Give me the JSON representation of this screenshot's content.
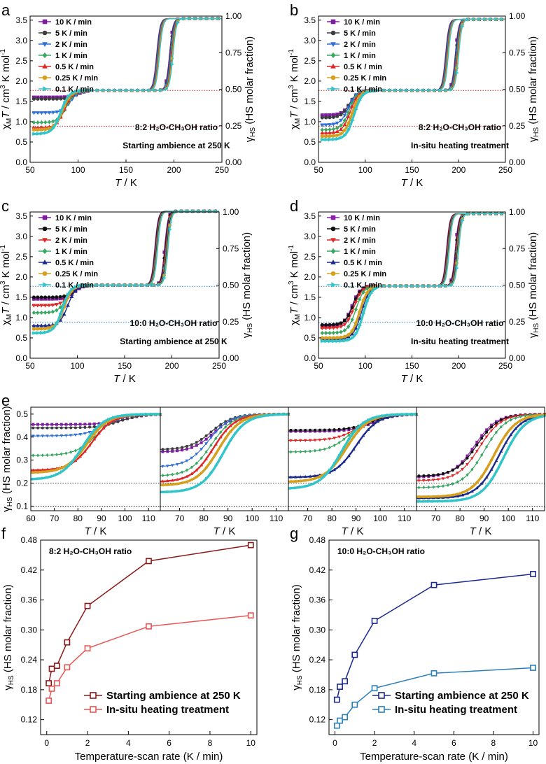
{
  "chart_data": [
    {
      "panel": "a",
      "type": "line",
      "xlabel": "T / K",
      "ylabel": "χMT / cm3 K mol-1",
      "y2label": "γHS (HS molar fraction)",
      "xlim": [
        50,
        250
      ],
      "ylim": [
        0,
        3.6
      ],
      "y2lim": [
        0,
        1.0
      ],
      "xticks": [
        "50",
        "100",
        "150",
        "200",
        "250"
      ],
      "yticks": [
        "0.0",
        "0.5",
        "1.0",
        "1.5",
        "2.0",
        "2.5",
        "3.0",
        "3.5"
      ],
      "y2ticks": [
        "0.00",
        "0.25",
        "0.50",
        "0.75",
        "1.00"
      ],
      "annotations": [
        "8:2 H₂O-CH₃OH ratio",
        "Starting ambience at 250 K"
      ],
      "guide_color": "#d62a2a",
      "guide_values": [
        0.89,
        1.77
      ],
      "plateau": 1.77,
      "high": 3.54,
      "t_up": 199,
      "t_down": 182,
      "series": [
        {
          "name": "10 K / min",
          "color": "#7b1d9e",
          "marker": "square",
          "start": 1.6,
          "T50": 100
        },
        {
          "name": "5 K / min",
          "color": "#3d3d3d",
          "marker": "circle",
          "start": 1.56,
          "T50": 98
        },
        {
          "name": "2 K / min",
          "color": "#2f6fd6",
          "marker": "tri-down",
          "start": 1.22,
          "T50": 92
        },
        {
          "name": "1 K / min",
          "color": "#38a862",
          "marker": "diamond",
          "start": 0.98,
          "T50": 88
        },
        {
          "name": "0.5 K / min",
          "color": "#e02727",
          "marker": "tri-up",
          "start": 0.85,
          "T50": 86
        },
        {
          "name": "0.25 K / min",
          "color": "#d6a01e",
          "marker": "circle",
          "start": 0.8,
          "T50": 84
        },
        {
          "name": "0.1 K / min",
          "color": "#31c4c8",
          "marker": "tri-right",
          "start": 0.7,
          "T50": 82
        }
      ]
    },
    {
      "panel": "b",
      "type": "line",
      "xlabel": "T / K",
      "ylabel": "χMT / cm3 K mol-1",
      "y2label": "γHS (HS molar fraction)",
      "xlim": [
        50,
        250
      ],
      "ylim": [
        0,
        3.6
      ],
      "y2lim": [
        0,
        1.0
      ],
      "xticks": [
        "50",
        "100",
        "150",
        "200",
        "250"
      ],
      "yticks": [
        "0.0",
        "0.5",
        "1.0",
        "1.5",
        "2.0",
        "2.5",
        "3.0",
        "3.5"
      ],
      "y2ticks": [
        "0.00",
        "0.25",
        "0.50",
        "0.75",
        "1.00"
      ],
      "annotations": [
        "8:2 H₂O-CH₃OH ratio",
        "In-situ heating treatment"
      ],
      "guide_color": "#d62a2a",
      "guide_values": [
        0.89,
        1.77
      ],
      "plateau": 1.77,
      "high": 3.52,
      "t_up": 200,
      "t_down": 186,
      "series": [
        {
          "name": "10 K / min",
          "color": "#7b1d9e",
          "marker": "square",
          "start": 1.16,
          "T50": 84
        },
        {
          "name": "5 K / min",
          "color": "#3d3d3d",
          "marker": "circle",
          "start": 1.1,
          "T50": 83
        },
        {
          "name": "2 K / min",
          "color": "#2f6fd6",
          "marker": "tri-down",
          "start": 0.92,
          "T50": 82
        },
        {
          "name": "1 K / min",
          "color": "#38a862",
          "marker": "diamond",
          "start": 0.8,
          "T50": 83
        },
        {
          "name": "0.5 K / min",
          "color": "#e02727",
          "marker": "tri-up",
          "start": 0.72,
          "T50": 84
        },
        {
          "name": "0.25 K / min",
          "color": "#d6a01e",
          "marker": "circle",
          "start": 0.64,
          "T50": 86
        },
        {
          "name": "0.1 K / min",
          "color": "#31c4c8",
          "marker": "tri-right",
          "start": 0.56,
          "T50": 88
        }
      ]
    },
    {
      "panel": "c",
      "type": "line",
      "xlabel": "T / K",
      "ylabel": "χMT / cm3 K mol-1",
      "y2label": "γHS (HS molar fraction)",
      "xlim": [
        50,
        250
      ],
      "ylim": [
        0,
        3.6
      ],
      "y2lim": [
        0,
        1.0
      ],
      "xticks": [
        "50",
        "100",
        "150",
        "200",
        "250"
      ],
      "yticks": [
        "0.0",
        "0.5",
        "1.0",
        "1.5",
        "2.0",
        "2.5",
        "3.0",
        "3.5"
      ],
      "y2ticks": [
        "0.00",
        "0.25",
        "0.50",
        "0.75",
        "1.00"
      ],
      "annotations": [
        "10:0 H₂O-CH₃OH ratio",
        "Starting ambience at 250 K"
      ],
      "guide_color": "#2a8fd6",
      "guide_values": [
        0.89,
        1.77
      ],
      "plateau": 1.8,
      "high": 3.62,
      "t_up": 196,
      "t_down": 182,
      "series": [
        {
          "name": "10 K / min",
          "color": "#7b1d9e",
          "marker": "square",
          "start": 1.46,
          "T50": 97
        },
        {
          "name": "5 K / min",
          "color": "#111111",
          "marker": "circle",
          "start": 1.5,
          "T50": 96
        },
        {
          "name": "2 K / min",
          "color": "#e02727",
          "marker": "tri-down",
          "start": 1.3,
          "T50": 91
        },
        {
          "name": "1 K / min",
          "color": "#38a862",
          "marker": "diamond",
          "start": 1.12,
          "T50": 88
        },
        {
          "name": "0.5 K / min",
          "color": "#1a2a8c",
          "marker": "tri-up",
          "start": 0.8,
          "T50": 90
        },
        {
          "name": "0.25 K / min",
          "color": "#d6a01e",
          "marker": "circle",
          "start": 0.72,
          "T50": 86
        },
        {
          "name": "0.1 K / min",
          "color": "#31c4c8",
          "marker": "tri-right",
          "start": 0.62,
          "T50": 84
        }
      ]
    },
    {
      "panel": "d",
      "type": "line",
      "xlabel": "T / K",
      "ylabel": "χMT / cm3 K mol-1",
      "y2label": "γHS (HS molar fraction)",
      "xlim": [
        50,
        250
      ],
      "ylim": [
        0,
        3.6
      ],
      "y2lim": [
        0,
        1.0
      ],
      "xticks": [
        "50",
        "100",
        "150",
        "200",
        "250"
      ],
      "yticks": [
        "0.0",
        "0.5",
        "1.0",
        "1.5",
        "2.0",
        "2.5",
        "3.0",
        "3.5"
      ],
      "y2ticks": [
        "0.00",
        "0.25",
        "0.50",
        "0.75",
        "1.00"
      ],
      "annotations": [
        "10:0 H₂O-CH₃OH ratio",
        "In-situ heating treatment"
      ],
      "guide_color": "#2a8fd6",
      "guide_values": [
        0.89,
        1.77
      ],
      "plateau": 1.78,
      "high": 3.56,
      "t_up": 200,
      "t_down": 187,
      "series": [
        {
          "name": "10 K / min",
          "color": "#8a1fa8",
          "marker": "square",
          "start": 0.8,
          "T50": 86
        },
        {
          "name": "5 K / min",
          "color": "#111111",
          "marker": "circle",
          "start": 0.82,
          "T50": 87
        },
        {
          "name": "2 K / min",
          "color": "#e02727",
          "marker": "tri-down",
          "start": 0.74,
          "T50": 88
        },
        {
          "name": "1 K / min",
          "color": "#38a862",
          "marker": "diamond",
          "start": 0.62,
          "T50": 90
        },
        {
          "name": "0.5 K / min",
          "color": "#1a2a8c",
          "marker": "tri-up",
          "start": 0.48,
          "T50": 96
        },
        {
          "name": "0.25 K / min",
          "color": "#d6a01e",
          "marker": "circle",
          "start": 0.5,
          "T50": 94
        },
        {
          "name": "0.1 K / min",
          "color": "#31c4c8",
          "marker": "tri-right",
          "start": 0.42,
          "T50": 98
        }
      ]
    },
    {
      "panel": "e",
      "type": "line",
      "xlabel": "T / K",
      "ylabel": "γHS (HS molar fraction)",
      "ylim": [
        0.08,
        0.53
      ],
      "yticks": [
        "0.1",
        "0.2",
        "0.3",
        "0.4",
        "0.5"
      ],
      "guide_values": [
        0.1,
        0.2
      ],
      "subpanels": [
        {
          "xlim": [
            60,
            115
          ],
          "xticks": [
            "60",
            "70",
            "80",
            "90",
            "100",
            "110"
          ],
          "source": "a"
        },
        {
          "xlim": [
            62,
            115
          ],
          "xticks": [
            "70",
            "80",
            "90",
            "100",
            "110"
          ],
          "source": "b"
        },
        {
          "xlim": [
            62,
            115
          ],
          "xticks": [
            "70",
            "80",
            "90",
            "100",
            "110"
          ],
          "source": "c"
        },
        {
          "xlim": [
            62,
            115
          ],
          "xticks": [
            "70",
            "80",
            "90",
            "100",
            "110"
          ],
          "source": "d"
        }
      ],
      "low_values": {
        "a": [
          0.455,
          0.44,
          0.405,
          0.32,
          0.255,
          0.245,
          0.215
        ],
        "b": [
          0.335,
          0.345,
          0.27,
          0.23,
          0.205,
          0.19,
          0.16
        ],
        "c": [
          0.425,
          0.43,
          0.385,
          0.335,
          0.225,
          0.205,
          0.175
        ],
        "d": [
          0.225,
          0.23,
          0.21,
          0.18,
          0.135,
          0.14,
          0.12
        ]
      },
      "T50": {
        "a": [
          100,
          98,
          92,
          88,
          86,
          84,
          82
        ],
        "b": [
          84,
          83,
          82,
          83,
          84,
          86,
          88
        ],
        "c": [
          97,
          96,
          91,
          88,
          90,
          86,
          84
        ],
        "d": [
          86,
          87,
          88,
          90,
          96,
          94,
          98
        ]
      }
    },
    {
      "panel": "f",
      "type": "line",
      "title": "8:2 H₂O-CH₃OH ratio",
      "xlabel": "Temperature-scan rate (K / min)",
      "ylabel": "γHS (HS molar fraction)",
      "xlim": [
        -0.3,
        10.3
      ],
      "ylim": [
        0.09,
        0.48
      ],
      "xticks": [
        "0",
        "2",
        "4",
        "6",
        "8",
        "10"
      ],
      "yticks": [
        "0.12",
        "0.18",
        "0.24",
        "0.30",
        "0.36",
        "0.42",
        "0.48"
      ],
      "x": [
        0.1,
        0.25,
        0.5,
        1,
        2,
        5,
        10
      ],
      "series": [
        {
          "name": "Starting ambience at 250 K",
          "color": "#8b1a1a",
          "values": [
            0.193,
            0.222,
            0.228,
            0.275,
            0.348,
            0.438,
            0.47
          ]
        },
        {
          "name": "In-situ heating treatment",
          "color": "#e85555",
          "values": [
            0.158,
            0.182,
            0.193,
            0.225,
            0.263,
            0.307,
            0.329
          ]
        }
      ]
    },
    {
      "panel": "g",
      "type": "line",
      "title": "10:0 H₂O-CH₃OH ratio",
      "xlabel": "Temperature-scan rate (K / min)",
      "ylabel": "γHS (HS molar fraction)",
      "xlim": [
        -0.3,
        10.3
      ],
      "ylim": [
        0.09,
        0.48
      ],
      "xticks": [
        "0",
        "2",
        "4",
        "6",
        "8",
        "10"
      ],
      "yticks": [
        "0.12",
        "0.18",
        "0.24",
        "0.30",
        "0.36",
        "0.42",
        "0.48"
      ],
      "x": [
        0.1,
        0.25,
        0.5,
        1,
        2,
        5,
        10
      ],
      "series": [
        {
          "name": "Starting ambience at 250 K",
          "color": "#1a2a8c",
          "values": [
            0.16,
            0.186,
            0.197,
            0.25,
            0.318,
            0.39,
            0.412
          ]
        },
        {
          "name": "In-situ heating treatment",
          "color": "#2a7fb8",
          "values": [
            0.108,
            0.118,
            0.125,
            0.15,
            0.183,
            0.213,
            0.224
          ]
        }
      ]
    }
  ]
}
